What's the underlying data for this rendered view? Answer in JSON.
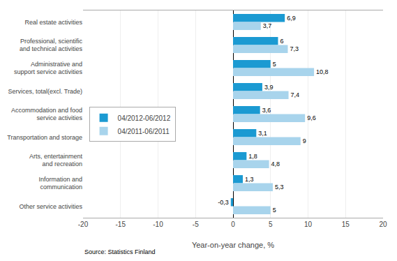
{
  "chart_data": {
    "type": "bar",
    "orientation": "horizontal",
    "categories": [
      "Real estate activities",
      "Professional, scientific and technical activities",
      "Administrative and support service activities",
      "Services, total(excl. Trade)",
      "Accommodation and food service activities",
      "Transportation and storage",
      "Arts, entertainment and recreation",
      "Information and communication",
      "Other service activities"
    ],
    "series": [
      {
        "name": "04/2012-06/2012",
        "color": "#1B9AD2",
        "values": [
          6.9,
          6.0,
          5.0,
          3.9,
          3.6,
          3.1,
          1.8,
          1.3,
          -0.3
        ],
        "value_labels": [
          "6,9",
          "6",
          "5",
          "3,9",
          "3,6",
          "3,1",
          "1,8",
          "1,3",
          "-0,3"
        ]
      },
      {
        "name": "04/2011-06/2011",
        "color": "#A8D4EC",
        "values": [
          3.7,
          7.3,
          10.8,
          7.4,
          9.6,
          9.0,
          4.8,
          5.3,
          5.0
        ],
        "value_labels": [
          "3,7",
          "7,3",
          "10,8",
          "7,4",
          "9,6",
          "9",
          "4,8",
          "5,3",
          "5"
        ]
      }
    ],
    "xlabel": "Year-on-year change, %",
    "xlim": [
      -20,
      20
    ],
    "xticks": [
      -20,
      -15,
      -10,
      -5,
      0,
      5,
      10,
      15,
      20
    ],
    "grid": true,
    "legend": "left",
    "data_labels": true,
    "annotations": [
      "Source: Statistics Finland"
    ]
  }
}
